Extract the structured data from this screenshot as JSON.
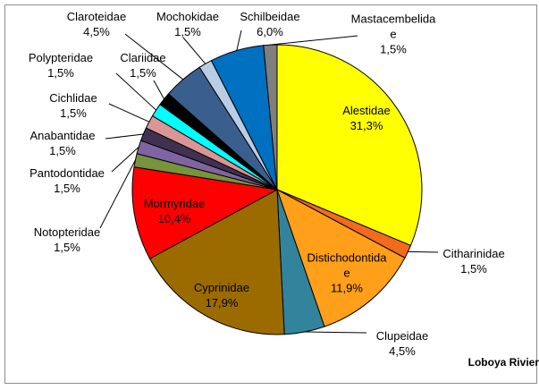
{
  "chart_data": {
    "type": "pie",
    "categories": [
      "Alestidae",
      "Citharinidae",
      "Distichodontidae",
      "Clupeidae",
      "Cyprinidae",
      "Mormyridae",
      "Notopteridae",
      "Pantodontidae",
      "Anabantidae",
      "Cichlidae",
      "Polypteridae",
      "Clariidae",
      "Claroteidae",
      "Mochokidae",
      "Schilbeidae",
      "Mastacembelidae"
    ],
    "values": [
      31.3,
      1.5,
      11.9,
      4.5,
      17.9,
      10.4,
      1.5,
      1.5,
      1.5,
      1.5,
      1.5,
      1.5,
      4.5,
      1.5,
      6.0,
      1.5
    ],
    "value_labels": [
      "31,3%",
      "1,5%",
      "11,9%",
      "4,5%",
      "17,9%",
      "10,4%",
      "1,5%",
      "1,5%",
      "1,5%",
      "1,5%",
      "1,5%",
      "1,5%",
      "4,5%",
      "1,5%",
      "6,0%",
      "1,5%"
    ],
    "colors": [
      "#ffff00",
      "#f26b1d",
      "#ff9f1a",
      "#31849b",
      "#9c6b00",
      "#ff0000",
      "#77933c",
      "#8064a2",
      "#403151",
      "#d99694",
      "#00ffff",
      "#000000",
      "#3a5f8f",
      "#b9cde5",
      "#0070c0",
      "#7f7f7f"
    ],
    "annotation": "Loboya Rivier"
  }
}
